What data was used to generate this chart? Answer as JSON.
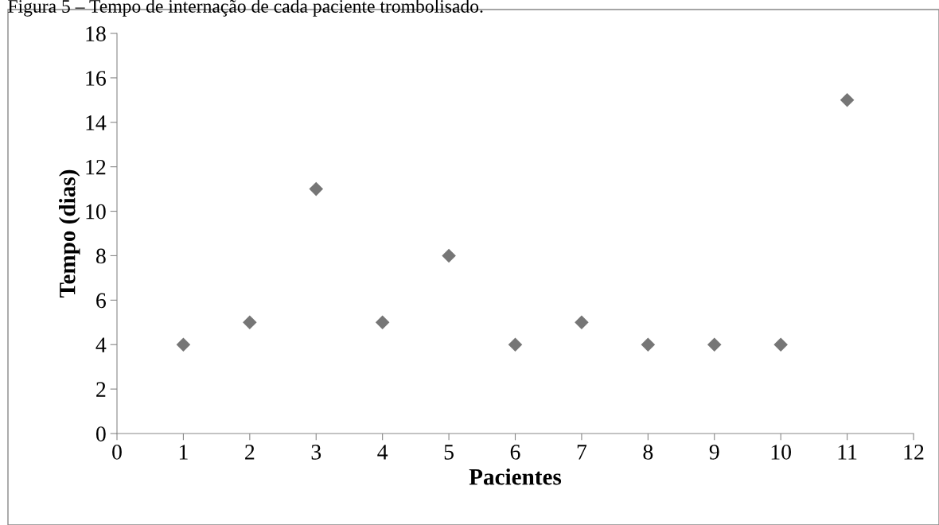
{
  "chart_data": {
    "type": "scatter",
    "title": "Figura 5 – Tempo de internação de cada paciente trombolisado.",
    "xlabel": "Pacientes",
    "ylabel": "Tempo (dias)",
    "x": [
      1,
      2,
      3,
      4,
      5,
      6,
      7,
      8,
      9,
      10,
      11
    ],
    "series": [
      {
        "color": "#767676",
        "values": [
          4,
          5,
          11,
          5,
          8,
          4,
          5,
          4,
          4,
          4,
          15
        ]
      }
    ],
    "marker": "diamond",
    "xlim": [
      0,
      12
    ],
    "xticks": [
      0,
      1,
      2,
      3,
      4,
      5,
      6,
      7,
      8,
      9,
      10,
      11,
      12
    ],
    "ylim": [
      0,
      18
    ],
    "yticks": [
      0,
      2,
      4,
      6,
      8,
      10,
      12,
      14,
      16,
      18
    ],
    "grid": false,
    "legend": false
  }
}
